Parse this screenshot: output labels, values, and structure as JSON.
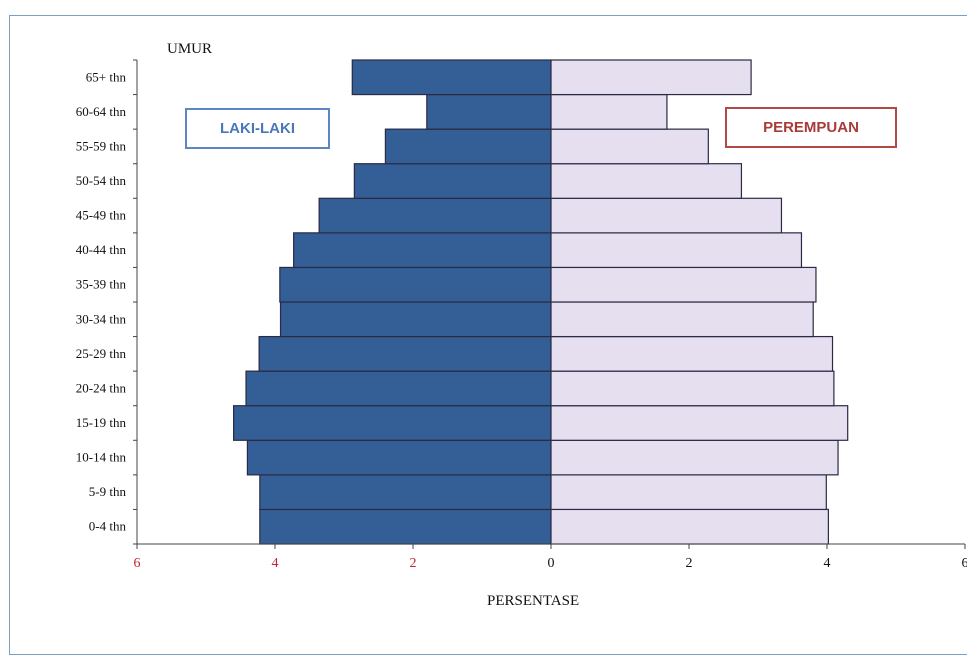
{
  "chart_data": {
    "type": "bar",
    "orientation": "horizontal",
    "layout": "population-pyramid",
    "title": "",
    "ylabel": "UMUR",
    "xlabel": "PERSENTASE",
    "categories": [
      "0-4 thn",
      "5-9 thn",
      "10-14 thn",
      "15-19 thn",
      "20-24 thn",
      "25-29 thn",
      "30-34 thn",
      "35-39 thn",
      "40-44 thn",
      "45-49 thn",
      "50-54 thn",
      "55-59 thn",
      "60-64 thn",
      "65+ thn"
    ],
    "series": [
      {
        "name": "LAKI-LAKI",
        "side": "left",
        "color": "#335f96",
        "values": [
          4.22,
          4.22,
          4.4,
          4.6,
          4.42,
          4.23,
          3.92,
          3.93,
          3.73,
          3.36,
          2.85,
          2.4,
          1.8,
          2.88
        ]
      },
      {
        "name": "PEREMPUAN",
        "side": "right",
        "color": "#e6dff0",
        "values": [
          4.02,
          3.99,
          4.16,
          4.3,
          4.1,
          4.08,
          3.8,
          3.84,
          3.63,
          3.34,
          2.76,
          2.28,
          1.68,
          2.9
        ]
      }
    ],
    "xlim": [
      -6,
      6
    ],
    "xticks": [
      {
        "value": -6,
        "label": "6"
      },
      {
        "value": -4,
        "label": "4"
      },
      {
        "value": -2,
        "label": "2"
      },
      {
        "value": 0,
        "label": "0"
      },
      {
        "value": 2,
        "label": "2"
      },
      {
        "value": 4,
        "label": "4"
      },
      {
        "value": 6,
        "label": "6"
      }
    ],
    "tick_colors": {
      "male_side": "#c0262c",
      "zero_and_female_side": "#111111"
    },
    "grid": false,
    "legend_placement": "top-left and top-right boxes",
    "colors": {
      "male_bar": "#335f96",
      "female_bar": "#e6dff0",
      "bar_outline": "#2a2a44",
      "frame": "#7f9fc0"
    }
  }
}
